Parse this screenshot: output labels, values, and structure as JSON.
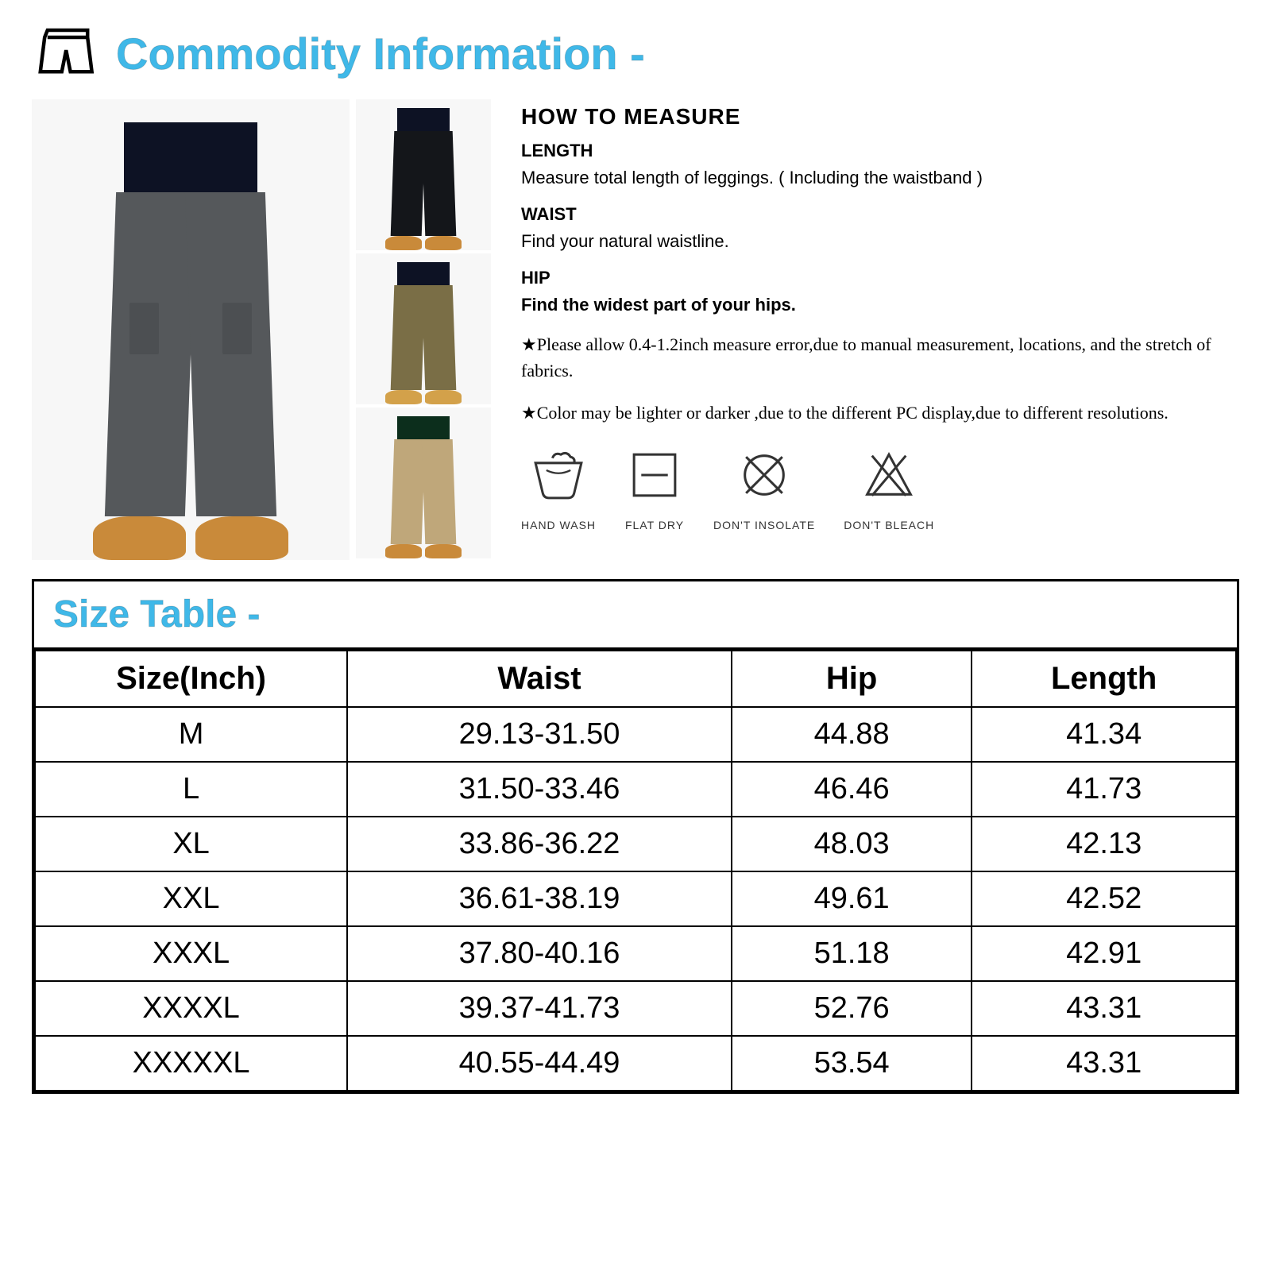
{
  "header": {
    "title": "Commodity Information -"
  },
  "products": {
    "main": {
      "torso_color": "#0d1224",
      "pants_color": "#55585b",
      "boot_color": "#c98a3a"
    },
    "thumbs": [
      {
        "torso_color": "#0d1224",
        "pants_color": "#14161a",
        "boot_color": "#c98a3a"
      },
      {
        "torso_color": "#0d1224",
        "pants_color": "#7a6e46",
        "boot_color": "#d3a14a"
      },
      {
        "torso_color": "#0c2e1c",
        "pants_color": "#bfa77a",
        "boot_color": "#c98a3a"
      }
    ]
  },
  "measure": {
    "heading": "HOW TO MEASURE",
    "length_label": "LENGTH",
    "length_text": "Measure total length of leggings. ( Including the waistband )",
    "waist_label": "WAIST",
    "waist_text": "Find your natural waistline.",
    "hip_label": "HIP",
    "hip_text": "Find the widest part of your hips.",
    "note1": "★Please allow 0.4-1.2inch measure error,due to manual measurement, locations, and the stretch of fabrics.",
    "note2": "★Color may be lighter or darker ,due to the different PC display,due to different resolutions."
  },
  "care": {
    "items": [
      {
        "name": "hand-wash",
        "label": "HAND WASH"
      },
      {
        "name": "flat-dry",
        "label": "FLAT DRY"
      },
      {
        "name": "dont-insolate",
        "label": "DON'T INSOLATE"
      },
      {
        "name": "dont-bleach",
        "label": "DON'T BLEACH"
      }
    ]
  },
  "size_table": {
    "title": "Size Table -",
    "columns": [
      "Size(Inch)",
      "Waist",
      "Hip",
      "Length"
    ],
    "rows": [
      [
        "M",
        "29.13-31.50",
        "44.88",
        "41.34"
      ],
      [
        "L",
        "31.50-33.46",
        "46.46",
        "41.73"
      ],
      [
        "XL",
        "33.86-36.22",
        "48.03",
        "42.13"
      ],
      [
        "XXL",
        "36.61-38.19",
        "49.61",
        "42.52"
      ],
      [
        "XXXL",
        "37.80-40.16",
        "51.18",
        "42.91"
      ],
      [
        "XXXXL",
        "39.37-41.73",
        "52.76",
        "43.31"
      ],
      [
        "XXXXXL",
        "40.55-44.49",
        "53.54",
        "43.31"
      ]
    ],
    "border_color": "#000000",
    "header_fontsize": 40,
    "cell_fontsize": 38
  },
  "colors": {
    "accent": "#3fb8e8",
    "background": "#ffffff",
    "text": "#000000",
    "note_text": "#555555"
  }
}
